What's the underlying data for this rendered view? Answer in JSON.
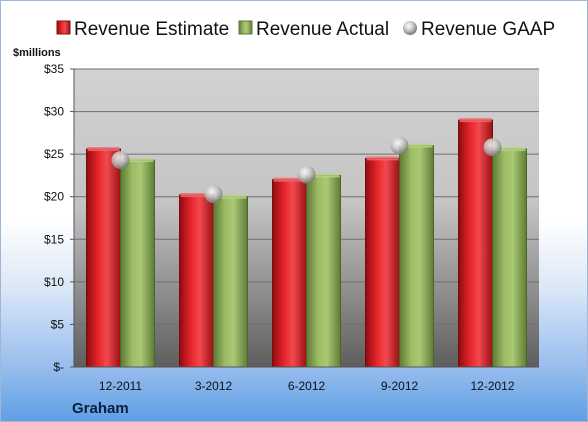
{
  "chart_data": {
    "type": "bar",
    "company": "Graham",
    "ylabel": "$millions",
    "categories": [
      "12-2011",
      "3-2012",
      "6-2012",
      "9-2012",
      "12-2012"
    ],
    "series": [
      {
        "name": "Revenue Estimate",
        "kind": "bar",
        "color": "#d4161c",
        "values": [
          25.6,
          20.2,
          22.0,
          24.5,
          29.0
        ]
      },
      {
        "name": "Revenue Actual",
        "kind": "bar",
        "color": "#8fb15a",
        "values": [
          24.3,
          20.0,
          22.5,
          26.0,
          25.6
        ]
      },
      {
        "name": "Revenue GAAP",
        "kind": "marker",
        "color": "#b0b0b0",
        "values": [
          24.3,
          20.3,
          22.6,
          26.0,
          25.8
        ]
      }
    ],
    "ylim": [
      0,
      35
    ],
    "yticks": [
      0,
      5,
      10,
      15,
      20,
      25,
      30,
      35
    ],
    "ytick_labels": [
      "$-",
      "$5",
      "$10",
      "$15",
      "$20",
      "$25",
      "$30",
      "$35"
    ],
    "grid": true,
    "legend": "top"
  }
}
